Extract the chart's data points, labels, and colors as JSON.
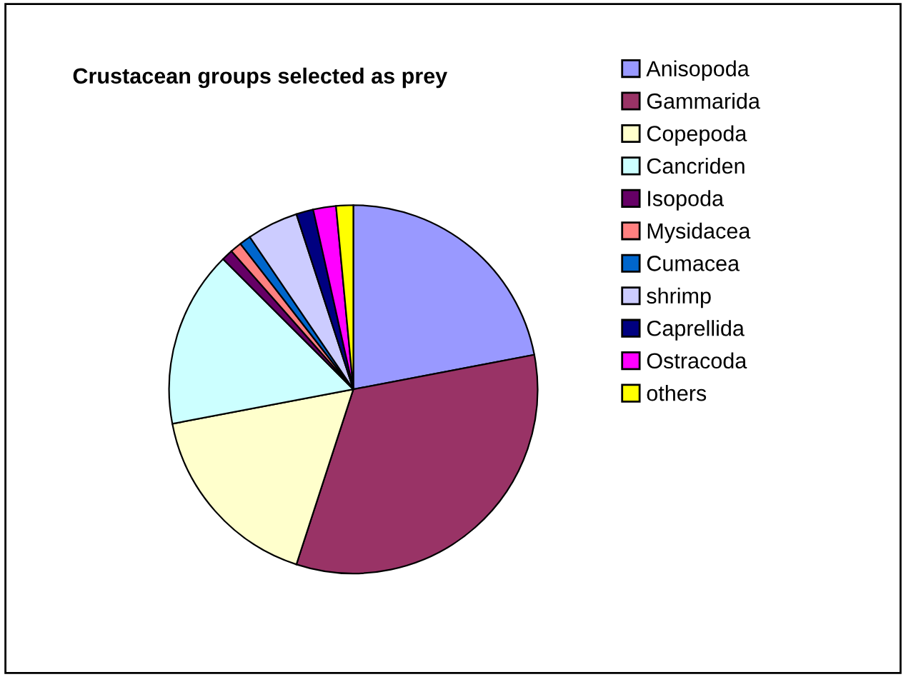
{
  "chart_data": {
    "type": "pie",
    "title": "Crustacean groups selected as prey",
    "categories": [
      "Anisopoda",
      "Gammarida",
      "Copepoda",
      "Cancriden",
      "Isopoda",
      "Mysidacea",
      "Cumacea",
      "shrimp",
      "Caprellida",
      "Ostracoda",
      "others"
    ],
    "values": [
      22,
      33,
      17,
      15.5,
      1,
      1,
      1,
      4.5,
      1.5,
      2,
      1.5
    ],
    "colors": [
      "#9999ff",
      "#993366",
      "#ffffcc",
      "#ccffff",
      "#660066",
      "#ff8080",
      "#0066cc",
      "#ccccff",
      "#000080",
      "#ff00ff",
      "#ffff00"
    ],
    "legend": "right"
  }
}
